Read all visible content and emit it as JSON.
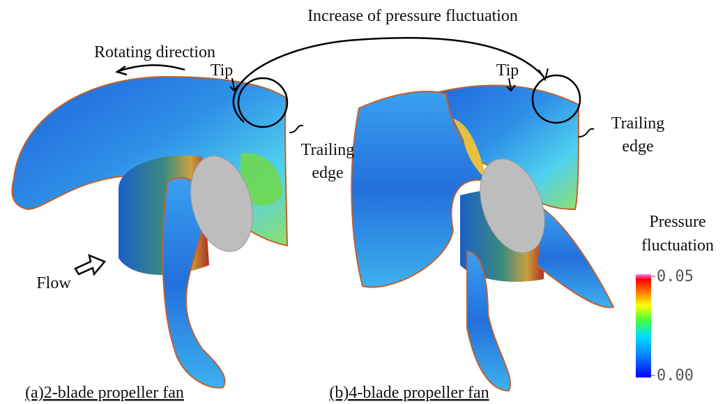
{
  "title": "Increase of pressure fluctuation",
  "rotating_direction": "Rotating direction",
  "tip_a": "Tip",
  "tip_b": "Tip",
  "trailing_edge_a": [
    "Trailing",
    "edge"
  ],
  "trailing_edge_b": [
    "Trailing",
    "edge"
  ],
  "flow": "Flow",
  "colorbar": {
    "title": [
      "Pressure",
      "fluctuation"
    ],
    "lim": [
      0,
      0.05
    ],
    "ticks": [
      0.05,
      {
        "value": 0,
        "label": "0.00"
      }
    ]
  },
  "caption_a": "(a)2-blade propeller fan",
  "caption_b": "(b)4-blade propeller fan"
}
